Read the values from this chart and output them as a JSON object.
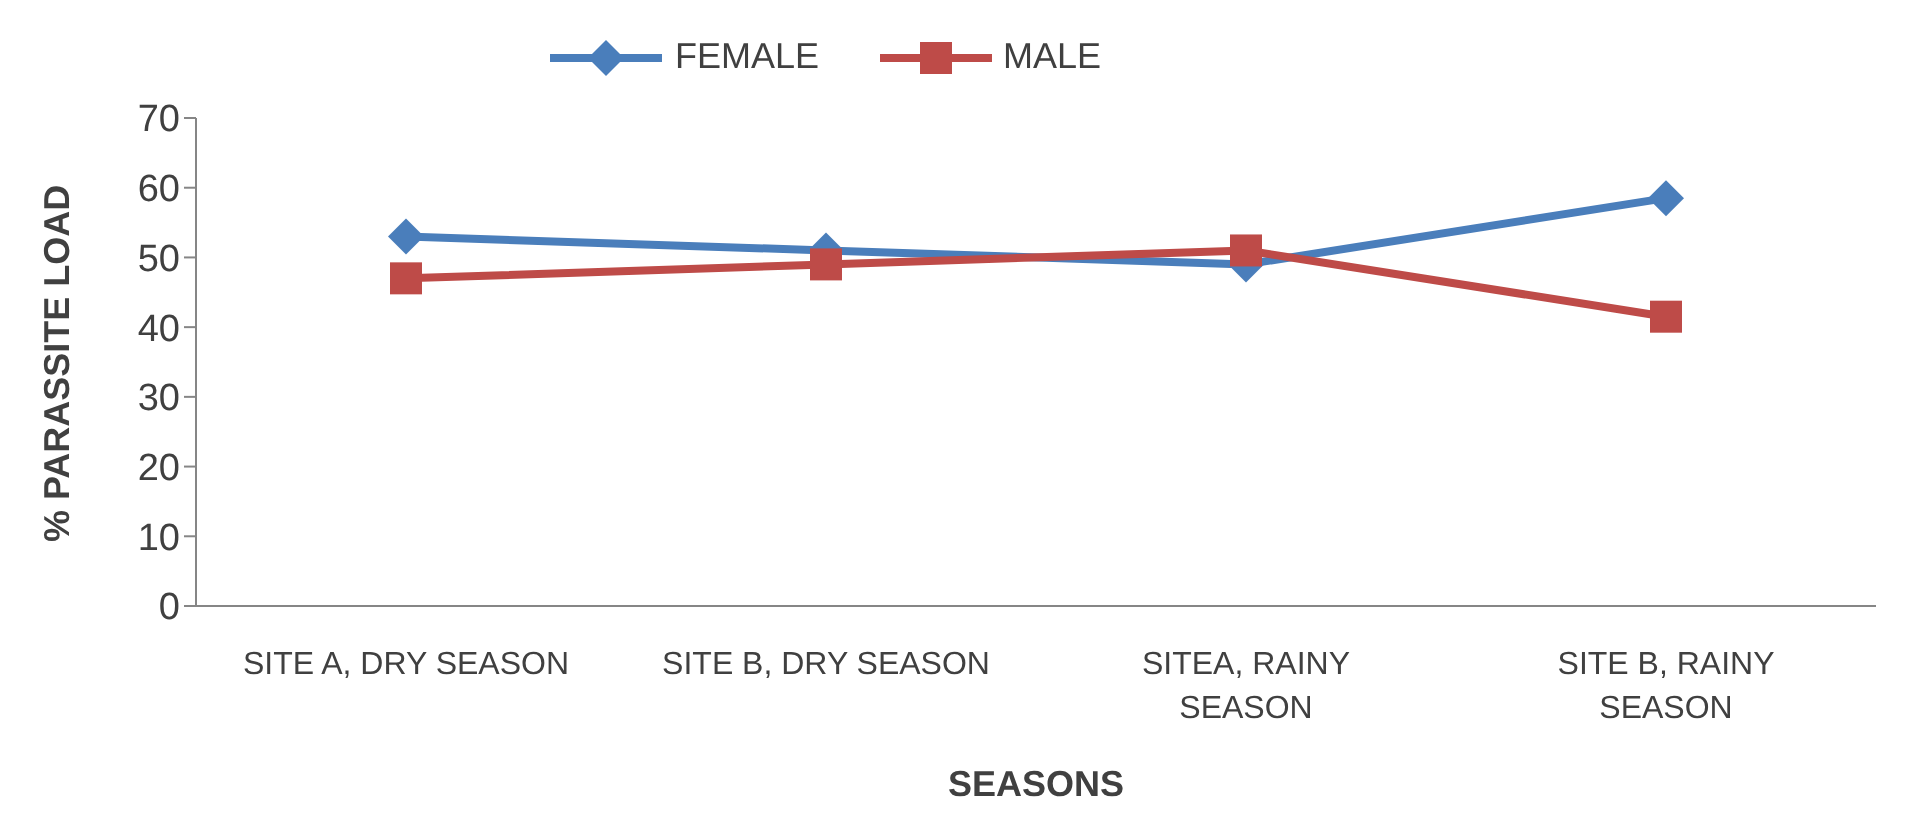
{
  "chart_data": {
    "type": "line",
    "xlabel": "SEASONS",
    "ylabel": "% PARASSITE LOAD",
    "categories": [
      "SITE A, DRY SEASON",
      "SITE B, DRY SEASON",
      "SITEA, RAINY SEASON",
      "SITE B, RAINY SEASON"
    ],
    "series": [
      {
        "name": "FEMALE",
        "color": "#4a7ebb",
        "values": [
          53,
          51,
          49,
          58.5
        ],
        "marker": "diamond"
      },
      {
        "name": "MALE",
        "color": "#be4b48",
        "values": [
          47,
          49,
          51,
          41.5
        ],
        "marker": "square"
      }
    ],
    "ylim": [
      0,
      70
    ],
    "yticks": [
      0,
      10,
      20,
      30,
      40,
      50,
      60,
      70
    ],
    "grid": false,
    "legend": "top"
  }
}
